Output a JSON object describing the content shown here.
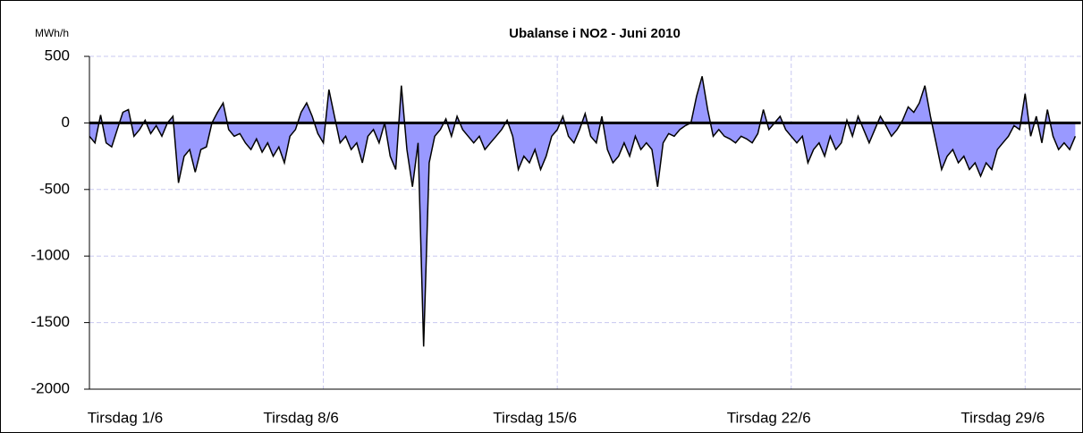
{
  "chart_data": {
    "type": "area",
    "title": "Ubalanse i NO2  - Juni 2010",
    "ylabel": "MWh/h",
    "color": "#9999ff",
    "line_color": "#000000",
    "grid": true,
    "xlim": [
      0,
      712
    ],
    "xticks": [
      {
        "value": 0,
        "label": "Tirsdag 1/6"
      },
      {
        "value": 168,
        "label": "Tirsdag 8/6"
      },
      {
        "value": 336,
        "label": "Tirsdag 15/6"
      },
      {
        "value": 504,
        "label": "Tirsdag 22/6"
      },
      {
        "value": 672,
        "label": "Tirsdag 29/6"
      }
    ],
    "ylim": [
      -2000,
      500
    ],
    "yticks": [
      -2000,
      -1500,
      -1000,
      -500,
      0,
      500
    ],
    "x": [
      0,
      4,
      8,
      12,
      16,
      20,
      24,
      28,
      32,
      36,
      40,
      44,
      48,
      52,
      56,
      60,
      64,
      68,
      72,
      76,
      80,
      84,
      88,
      92,
      96,
      100,
      104,
      108,
      112,
      116,
      120,
      124,
      128,
      132,
      136,
      140,
      144,
      148,
      152,
      156,
      160,
      164,
      168,
      172,
      176,
      180,
      184,
      188,
      192,
      196,
      200,
      204,
      208,
      212,
      216,
      220,
      224,
      228,
      232,
      236,
      240,
      244,
      248,
      252,
      256,
      260,
      264,
      268,
      272,
      276,
      280,
      284,
      288,
      292,
      296,
      300,
      304,
      308,
      312,
      316,
      320,
      324,
      328,
      332,
      336,
      340,
      344,
      348,
      352,
      356,
      360,
      364,
      368,
      372,
      376,
      380,
      384,
      388,
      392,
      396,
      400,
      404,
      408,
      412,
      416,
      420,
      424,
      428,
      432,
      436,
      440,
      444,
      448,
      452,
      456,
      460,
      464,
      468,
      472,
      476,
      480,
      484,
      488,
      492,
      496,
      500,
      504,
      508,
      512,
      516,
      520,
      524,
      528,
      532,
      536,
      540,
      544,
      548,
      552,
      556,
      560,
      564,
      568,
      572,
      576,
      580,
      584,
      588,
      592,
      596,
      600,
      604,
      608,
      612,
      616,
      620,
      624,
      628,
      632,
      636,
      640,
      644,
      648,
      652,
      656,
      660,
      664,
      668,
      672,
      676,
      680,
      684,
      688,
      692,
      696,
      700,
      704,
      708
    ],
    "values": [
      -100,
      -150,
      60,
      -150,
      -180,
      -50,
      80,
      100,
      -100,
      -50,
      20,
      -80,
      -20,
      -100,
      0,
      50,
      -450,
      -250,
      -200,
      -370,
      -200,
      -180,
      0,
      80,
      150,
      -50,
      -100,
      -80,
      -150,
      -200,
      -120,
      -220,
      -150,
      -250,
      -180,
      -300,
      -100,
      -50,
      80,
      150,
      50,
      -80,
      -150,
      250,
      50,
      -150,
      -100,
      -200,
      -150,
      -300,
      -100,
      -50,
      -150,
      0,
      -250,
      -350,
      280,
      -200,
      -480,
      -150,
      -1680,
      -300,
      -100,
      -50,
      30,
      -100,
      50,
      -50,
      -100,
      -150,
      -100,
      -200,
      -150,
      -100,
      -50,
      20,
      -100,
      -350,
      -250,
      -300,
      -200,
      -350,
      -250,
      -100,
      -50,
      50,
      -100,
      -150,
      -50,
      70,
      -100,
      -150,
      50,
      -200,
      -300,
      -250,
      -150,
      -250,
      -100,
      -200,
      -150,
      -200,
      -480,
      -150,
      -80,
      -100,
      -50,
      -20,
      0,
      200,
      350,
      100,
      -100,
      -50,
      -100,
      -120,
      -150,
      -100,
      -120,
      -150,
      -80,
      100,
      -50,
      0,
      50,
      -50,
      -100,
      -150,
      -100,
      -300,
      -200,
      -150,
      -250,
      -100,
      -200,
      -150,
      20,
      -100,
      50,
      -50,
      -150,
      -50,
      50,
      -20,
      -100,
      -50,
      20,
      120,
      80,
      150,
      280,
      50,
      -150,
      -350,
      -250,
      -200,
      -300,
      -250,
      -350,
      -300,
      -400,
      -300,
      -350,
      -200,
      -150,
      -100,
      -20,
      -50,
      220,
      -100,
      50,
      -150,
      100,
      -100,
      -200,
      -150,
      -200,
      -100
    ]
  }
}
